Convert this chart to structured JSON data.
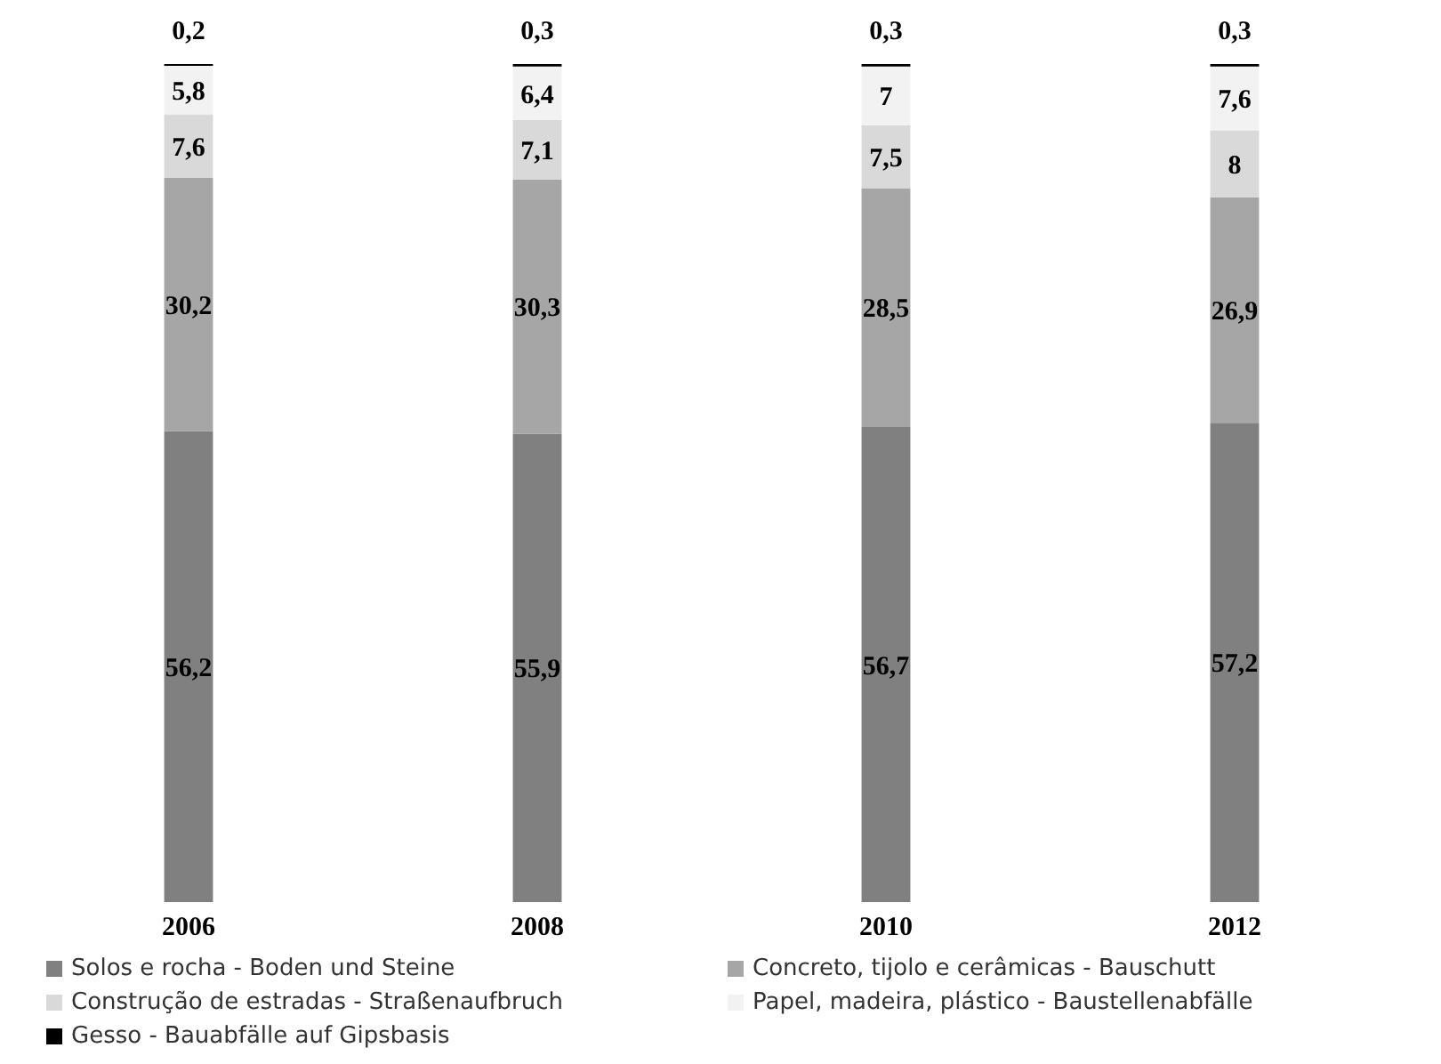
{
  "chart_data": {
    "type": "bar",
    "stacked": true,
    "categories": [
      "2006",
      "2008",
      "2010",
      "2012"
    ],
    "legend": "bottom",
    "series": [
      {
        "name": "Solos e rocha - Boden und Steine",
        "color": "#808080",
        "values": [
          56.2,
          55.9,
          56.7,
          57.2
        ],
        "value_labels": [
          "56,2",
          "55,9",
          "56,7",
          "57,2"
        ]
      },
      {
        "name": "Concreto, tijolo e cerâmicas - Bauschutt",
        "color": "#a6a6a6",
        "values": [
          30.2,
          30.3,
          28.5,
          26.9
        ],
        "value_labels": [
          "30,2",
          "30,3",
          "28,5",
          "26,9"
        ]
      },
      {
        "name": "Construção de estradas - Straßenaufbruch",
        "color": "#d9d9d9",
        "values": [
          7.6,
          7.1,
          7.5,
          8
        ],
        "value_labels": [
          "7,6",
          "7,1",
          "7,5",
          "8"
        ]
      },
      {
        "name": "Papel, madeira, plástico - Baustellenabfälle",
        "color": "#f2f2f2",
        "values": [
          5.8,
          6.4,
          7,
          7.6
        ],
        "value_labels": [
          "5,8",
          "6,4",
          "7",
          "7,6"
        ]
      },
      {
        "name": "Gesso - Bauabfälle auf Gipsbasis",
        "color": "#000000",
        "values": [
          0.2,
          0.3,
          0.3,
          0.3
        ],
        "value_labels": [
          "0,2",
          "0,3",
          "0,3",
          "0,3"
        ]
      }
    ]
  }
}
